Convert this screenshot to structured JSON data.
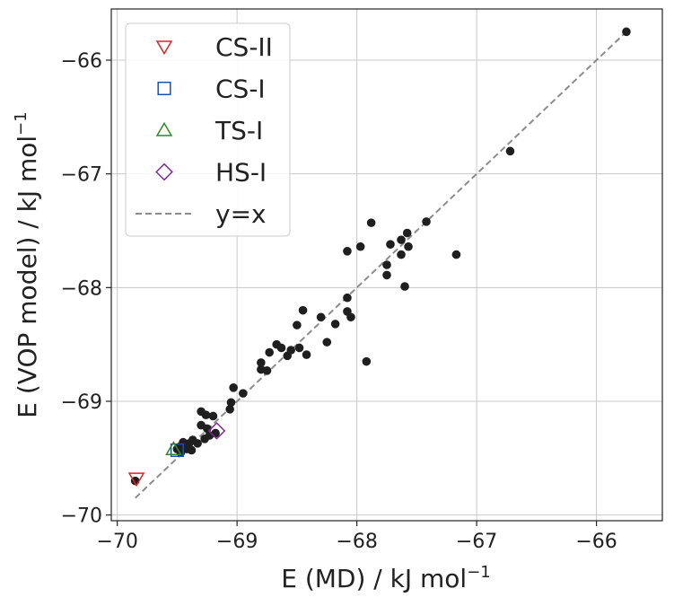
{
  "chart_data": {
    "type": "scatter",
    "title": "",
    "xlabel": "E (MD) / kJ mol",
    "xlabel_sup": "−1",
    "ylabel": "E (VOP model) / kJ mol",
    "ylabel_sup": "−1",
    "xlim": [
      -70.05,
      -65.45
    ],
    "ylim": [
      -70.05,
      -65.55
    ],
    "xticks": [
      -70,
      -69,
      -68,
      -67,
      -66
    ],
    "yticks": [
      -70,
      -69,
      -68,
      -67,
      -66
    ],
    "xtick_labels": [
      "−70",
      "−69",
      "−68",
      "−67",
      "−66"
    ],
    "ytick_labels": [
      "−70",
      "−69",
      "−68",
      "−67",
      "−66"
    ],
    "grid": true,
    "legend_position": "top-left",
    "series": [
      {
        "name": "data",
        "marker": "circle",
        "color": "#1f1f1f",
        "points": [
          [
            -65.75,
            -65.75
          ],
          [
            -66.72,
            -66.8
          ],
          [
            -67.88,
            -67.43
          ],
          [
            -67.97,
            -67.64
          ],
          [
            -68.08,
            -67.68
          ],
          [
            -67.58,
            -67.52
          ],
          [
            -67.63,
            -67.58
          ],
          [
            -67.42,
            -67.42
          ],
          [
            -67.72,
            -67.62
          ],
          [
            -67.57,
            -67.64
          ],
          [
            -67.63,
            -67.71
          ],
          [
            -67.17,
            -67.71
          ],
          [
            -67.75,
            -67.8
          ],
          [
            -67.75,
            -67.89
          ],
          [
            -67.6,
            -67.99
          ],
          [
            -68.08,
            -68.09
          ],
          [
            -68.08,
            -68.21
          ],
          [
            -68.05,
            -68.26
          ],
          [
            -68.18,
            -68.32
          ],
          [
            -68.3,
            -68.26
          ],
          [
            -68.45,
            -68.2
          ],
          [
            -68.5,
            -68.33
          ],
          [
            -68.25,
            -68.48
          ],
          [
            -67.92,
            -68.65
          ],
          [
            -68.48,
            -68.53
          ],
          [
            -68.55,
            -68.55
          ],
          [
            -68.58,
            -68.6
          ],
          [
            -68.42,
            -68.59
          ],
          [
            -68.63,
            -68.53
          ],
          [
            -68.67,
            -68.5
          ],
          [
            -68.73,
            -68.57
          ],
          [
            -68.75,
            -68.73
          ],
          [
            -68.8,
            -68.72
          ],
          [
            -68.8,
            -68.66
          ],
          [
            -68.95,
            -68.93
          ],
          [
            -69.03,
            -68.88
          ],
          [
            -69.05,
            -69.01
          ],
          [
            -69.06,
            -69.07
          ],
          [
            -69.2,
            -69.13
          ],
          [
            -69.26,
            -69.12
          ],
          [
            -69.3,
            -69.09
          ],
          [
            -69.3,
            -69.21
          ],
          [
            -69.25,
            -69.24
          ],
          [
            -69.18,
            -69.28
          ],
          [
            -69.23,
            -69.3
          ],
          [
            -69.27,
            -69.33
          ],
          [
            -69.33,
            -69.37
          ],
          [
            -69.37,
            -69.34
          ],
          [
            -69.4,
            -69.37
          ],
          [
            -69.45,
            -69.36
          ],
          [
            -69.48,
            -69.4
          ],
          [
            -69.42,
            -69.42
          ],
          [
            -69.38,
            -69.43
          ],
          [
            -69.47,
            -69.45
          ],
          [
            -69.5,
            -69.42
          ],
          [
            -69.85,
            -69.7
          ]
        ]
      },
      {
        "name": "CS-II",
        "marker": "triangle-down",
        "color": "#d62728",
        "points": [
          [
            -69.84,
            -69.68
          ]
        ]
      },
      {
        "name": "CS-I",
        "marker": "square",
        "color": "#1f4fa8",
        "points": [
          [
            -69.5,
            -69.43
          ]
        ]
      },
      {
        "name": "TS-I",
        "marker": "triangle-up",
        "color": "#2c8a2c",
        "points": [
          [
            -69.53,
            -69.42
          ]
        ]
      },
      {
        "name": "HS-I",
        "marker": "diamond",
        "color": "#7b2d8e",
        "points": [
          [
            -69.17,
            -69.26
          ]
        ]
      }
    ],
    "reference_line": {
      "name": "y=x",
      "from": [
        -69.85,
        -69.85
      ],
      "to": [
        -65.75,
        -65.75
      ],
      "color": "#8c8c8c",
      "style": "dashed"
    },
    "legend": [
      {
        "label": "CS-II",
        "marker": "triangle-down",
        "color": "#d62728"
      },
      {
        "label": "CS-I",
        "marker": "square",
        "color": "#1f4fa8"
      },
      {
        "label": "TS-I",
        "marker": "triangle-up",
        "color": "#2c8a2c"
      },
      {
        "label": "HS-I",
        "marker": "diamond",
        "color": "#7b2d8e"
      },
      {
        "label": "y=x",
        "marker": "dashed-line",
        "color": "#8c8c8c"
      }
    ]
  }
}
